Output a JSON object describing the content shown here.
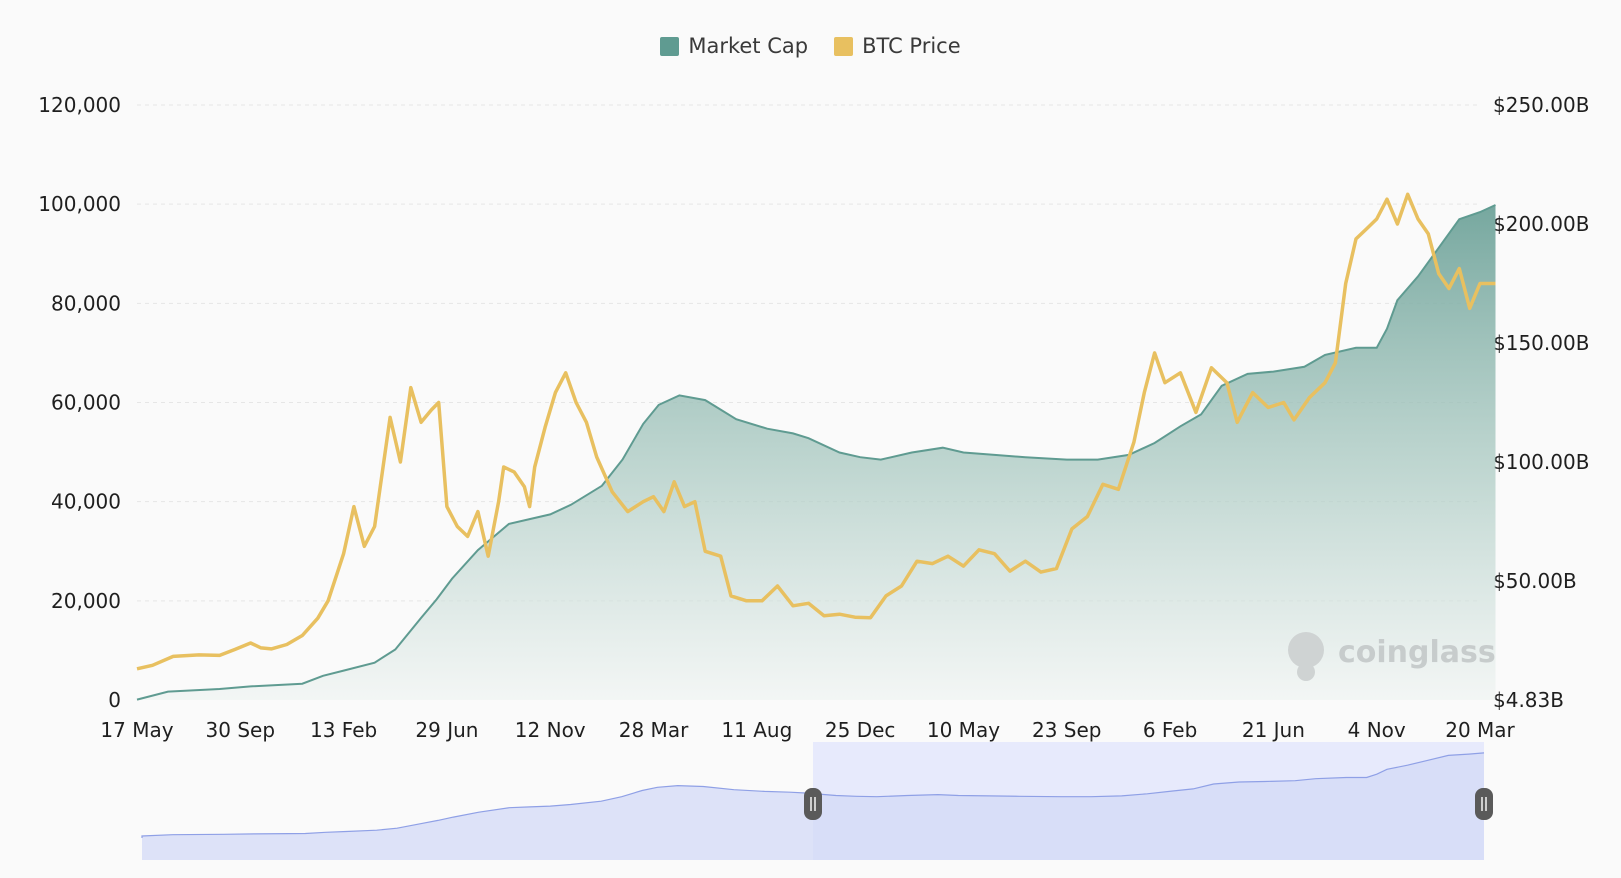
{
  "legend": [
    {
      "name": "Market Cap",
      "color": "#5f9b91",
      "icon": "square"
    },
    {
      "name": "BTC Price",
      "color": "#e8c060",
      "icon": "square"
    }
  ],
  "watermark": {
    "text": "coinglass",
    "icon": "coinglass-logo-icon"
  },
  "chart_data": {
    "type": "area",
    "title": "",
    "xlabel": "",
    "grid": true,
    "legend_position": "top-center",
    "x_tick_labels": [
      "17 May",
      "30 Sep",
      "13 Feb",
      "29 Jun",
      "12 Nov",
      "28 Mar",
      "11 Aug",
      "25 Dec",
      "10 May",
      "23 Sep",
      "6 Feb",
      "21 Jun",
      "4 Nov",
      "20 Mar"
    ],
    "y_left": {
      "ticks": [
        "0",
        "20,000",
        "40,000",
        "60,000",
        "80,000",
        "100,000",
        "120,000"
      ],
      "range": [
        0,
        120000
      ]
    },
    "y_right": {
      "ticks": [
        "$4.83B",
        "$50.00B",
        "$100.00B",
        "$150.00B",
        "$200.00B",
        "$250.00B"
      ],
      "tick_values": [
        4.83,
        50,
        100,
        150,
        200,
        250
      ]
    },
    "series": [
      {
        "name": "Market Cap",
        "axis": "right",
        "unit": "B USD",
        "color": "#5f9b91",
        "fill": "gradient",
        "points": [
          [
            0,
            5
          ],
          [
            0.3,
            8
          ],
          [
            0.8,
            9
          ],
          [
            1.1,
            10
          ],
          [
            1.6,
            11
          ],
          [
            1.8,
            14
          ],
          [
            2,
            16
          ],
          [
            2.3,
            19
          ],
          [
            2.5,
            24
          ],
          [
            2.75,
            36
          ],
          [
            2.9,
            43
          ],
          [
            3.05,
            51
          ],
          [
            3.3,
            63
          ],
          [
            3.6,
            74
          ],
          [
            3.8,
            76
          ],
          [
            4.0,
            78
          ],
          [
            4.2,
            82
          ],
          [
            4.5,
            90
          ],
          [
            4.7,
            101
          ],
          [
            4.9,
            116
          ],
          [
            5.05,
            124
          ],
          [
            5.25,
            128
          ],
          [
            5.5,
            126
          ],
          [
            5.8,
            118
          ],
          [
            6.1,
            114
          ],
          [
            6.35,
            112
          ],
          [
            6.5,
            110
          ],
          [
            6.8,
            104
          ],
          [
            7.0,
            102
          ],
          [
            7.2,
            101
          ],
          [
            7.5,
            104
          ],
          [
            7.8,
            106
          ],
          [
            8.0,
            104
          ],
          [
            8.3,
            103
          ],
          [
            8.6,
            102
          ],
          [
            9.0,
            101
          ],
          [
            9.3,
            101
          ],
          [
            9.6,
            103
          ],
          [
            9.85,
            108
          ],
          [
            10.1,
            115
          ],
          [
            10.3,
            120
          ],
          [
            10.5,
            132
          ],
          [
            10.75,
            137
          ],
          [
            11.0,
            138
          ],
          [
            11.3,
            140
          ],
          [
            11.5,
            145
          ],
          [
            11.8,
            148
          ],
          [
            12.0,
            148
          ],
          [
            12.1,
            156
          ],
          [
            12.2,
            168
          ],
          [
            12.4,
            178
          ],
          [
            12.6,
            190
          ],
          [
            12.8,
            202
          ],
          [
            13.0,
            205
          ],
          [
            13.15,
            208
          ]
        ]
      },
      {
        "name": "BTC Price",
        "axis": "left",
        "unit": "USD",
        "color": "#e8c060",
        "points": [
          [
            0,
            6300
          ],
          [
            0.15,
            7000
          ],
          [
            0.35,
            8800
          ],
          [
            0.6,
            9100
          ],
          [
            0.8,
            9000
          ],
          [
            0.95,
            10200
          ],
          [
            1.1,
            11500
          ],
          [
            1.2,
            10500
          ],
          [
            1.3,
            10300
          ],
          [
            1.45,
            11200
          ],
          [
            1.6,
            13000
          ],
          [
            1.75,
            16500
          ],
          [
            1.85,
            20000
          ],
          [
            2.0,
            29500
          ],
          [
            2.1,
            39000
          ],
          [
            2.2,
            31000
          ],
          [
            2.3,
            35000
          ],
          [
            2.45,
            57000
          ],
          [
            2.55,
            48000
          ],
          [
            2.65,
            63000
          ],
          [
            2.75,
            56000
          ],
          [
            2.85,
            58500
          ],
          [
            2.92,
            60000
          ],
          [
            3.0,
            39000
          ],
          [
            3.1,
            35000
          ],
          [
            3.2,
            33000
          ],
          [
            3.3,
            38000
          ],
          [
            3.4,
            29000
          ],
          [
            3.5,
            40000
          ],
          [
            3.55,
            47000
          ],
          [
            3.65,
            46000
          ],
          [
            3.75,
            43000
          ],
          [
            3.8,
            39000
          ],
          [
            3.85,
            47000
          ],
          [
            3.95,
            55000
          ],
          [
            4.05,
            62000
          ],
          [
            4.15,
            66000
          ],
          [
            4.25,
            60000
          ],
          [
            4.35,
            56000
          ],
          [
            4.45,
            49000
          ],
          [
            4.6,
            42000
          ],
          [
            4.75,
            38000
          ],
          [
            4.9,
            40000
          ],
          [
            5.0,
            41000
          ],
          [
            5.1,
            38000
          ],
          [
            5.2,
            44000
          ],
          [
            5.3,
            39000
          ],
          [
            5.4,
            40000
          ],
          [
            5.5,
            30000
          ],
          [
            5.65,
            29000
          ],
          [
            5.75,
            21000
          ],
          [
            5.9,
            20000
          ],
          [
            6.05,
            20000
          ],
          [
            6.2,
            23000
          ],
          [
            6.35,
            19000
          ],
          [
            6.5,
            19500
          ],
          [
            6.65,
            17000
          ],
          [
            6.8,
            17300
          ],
          [
            6.95,
            16700
          ],
          [
            7.1,
            16600
          ],
          [
            7.25,
            21000
          ],
          [
            7.4,
            23000
          ],
          [
            7.55,
            28000
          ],
          [
            7.7,
            27500
          ],
          [
            7.85,
            29000
          ],
          [
            8.0,
            27000
          ],
          [
            8.15,
            30300
          ],
          [
            8.3,
            29500
          ],
          [
            8.45,
            26000
          ],
          [
            8.6,
            28000
          ],
          [
            8.75,
            25800
          ],
          [
            8.9,
            26500
          ],
          [
            9.05,
            34500
          ],
          [
            9.2,
            37000
          ],
          [
            9.35,
            43500
          ],
          [
            9.5,
            42500
          ],
          [
            9.65,
            52000
          ],
          [
            9.75,
            62000
          ],
          [
            9.85,
            70000
          ],
          [
            9.95,
            64000
          ],
          [
            10.1,
            66000
          ],
          [
            10.25,
            58000
          ],
          [
            10.4,
            67000
          ],
          [
            10.55,
            64000
          ],
          [
            10.65,
            56000
          ],
          [
            10.8,
            62000
          ],
          [
            10.95,
            59000
          ],
          [
            11.1,
            60000
          ],
          [
            11.2,
            56500
          ],
          [
            11.35,
            61000
          ],
          [
            11.5,
            64000
          ],
          [
            11.6,
            68000
          ],
          [
            11.7,
            84000
          ],
          [
            11.8,
            93000
          ],
          [
            11.9,
            95000
          ],
          [
            12.0,
            97000
          ],
          [
            12.1,
            101000
          ],
          [
            12.2,
            96000
          ],
          [
            12.3,
            102000
          ],
          [
            12.4,
            97000
          ],
          [
            12.5,
            94000
          ],
          [
            12.6,
            86000
          ],
          [
            12.7,
            83000
          ],
          [
            12.8,
            87000
          ],
          [
            12.9,
            79000
          ],
          [
            13.0,
            84000
          ],
          [
            13.15,
            84000
          ]
        ]
      }
    ]
  },
  "navigator": {
    "range_start": 0.5,
    "range_end": 1.0
  }
}
